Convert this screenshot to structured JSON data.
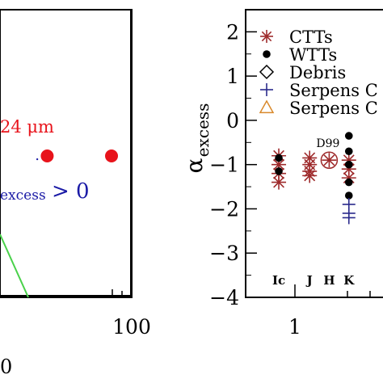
{
  "chart_data": [
    {
      "type": "scatter",
      "title": "",
      "xlabel": "",
      "ylabel": "",
      "x_scale": "log",
      "x_ticks": [
        {
          "value": 100,
          "label": "100"
        }
      ],
      "x_bottom_glyph": "0",
      "annotations": {
        "wavelength_label": "24 μm",
        "alpha_label_main": "excess",
        "alpha_label_rel": "> 0"
      },
      "series": [
        {
          "name": "",
          "color": "#e8131b",
          "points": [
            {
              "x": 30,
              "y": 0
            },
            {
              "x": 75,
              "y": 0
            }
          ]
        },
        {
          "name": "",
          "color": "#1a1aa6",
          "points": [
            {
              "x": 27,
              "y": 0
            }
          ]
        }
      ],
      "guide_line": {
        "color": "#49d14a"
      }
    },
    {
      "type": "scatter",
      "title": "",
      "xlabel": "",
      "ylabel": "α_excess",
      "ylabel_main": "α",
      "ylabel_sub": "excess",
      "ylim": [
        -4,
        2.5
      ],
      "y_ticks": [
        {
          "value": 2,
          "label": "2"
        },
        {
          "value": 1,
          "label": "1"
        },
        {
          "value": 0,
          "label": "0"
        },
        {
          "value": -1,
          "label": "−1"
        },
        {
          "value": -2,
          "label": "−2"
        },
        {
          "value": -3,
          "label": "−3"
        },
        {
          "value": -4,
          "label": "−4"
        }
      ],
      "x_scale": "log",
      "x_ticks": [
        {
          "value": 1,
          "label": "1"
        }
      ],
      "legend": {
        "placement": "top-right",
        "entries": [
          {
            "name": "CTTs",
            "marker": "asterisk",
            "color": "#9e2a2b"
          },
          {
            "name": "WTTs",
            "marker": "dot",
            "color": "#000000"
          },
          {
            "name": "Debris",
            "marker": "diamond",
            "color": "#000000"
          },
          {
            "name": "Serpens C",
            "marker": "plus",
            "color": "#2a2a8c"
          },
          {
            "name": "Serpens C",
            "marker": "triangle",
            "color": "#d9892b"
          }
        ]
      },
      "band_labels": [
        "Ic",
        "J",
        "H",
        "K"
      ],
      "annotations": {
        "d99": "D99"
      },
      "series": [
        {
          "name": "CTTs",
          "points": [
            {
              "x": 0.79,
              "y": -0.8
            },
            {
              "x": 0.79,
              "y": -1.0
            },
            {
              "x": 0.79,
              "y": -1.2
            },
            {
              "x": 0.79,
              "y": -1.4
            },
            {
              "x": 1.24,
              "y": -0.85
            },
            {
              "x": 1.24,
              "y": -1.0
            },
            {
              "x": 1.24,
              "y": -1.15
            },
            {
              "x": 1.24,
              "y": -1.25
            },
            {
              "x": 1.65,
              "y": -0.9
            },
            {
              "x": 2.2,
              "y": -0.9
            },
            {
              "x": 2.2,
              "y": -1.1
            },
            {
              "x": 2.2,
              "y": -1.3
            }
          ]
        },
        {
          "name": "WTTs",
          "points": [
            {
              "x": 0.79,
              "y": -0.85
            },
            {
              "x": 0.79,
              "y": -1.15
            },
            {
              "x": 2.2,
              "y": -0.35
            },
            {
              "x": 2.2,
              "y": -0.7
            },
            {
              "x": 2.2,
              "y": -1.0
            },
            {
              "x": 2.2,
              "y": -1.4
            },
            {
              "x": 2.2,
              "y": -1.7
            }
          ]
        },
        {
          "name": "Serpens C",
          "points": [
            {
              "x": 2.2,
              "y": -1.9
            },
            {
              "x": 2.2,
              "y": -2.1
            },
            {
              "x": 2.2,
              "y": -2.2
            }
          ]
        }
      ],
      "d99_point": {
        "x": 1.65,
        "y": -0.9
      }
    }
  ]
}
